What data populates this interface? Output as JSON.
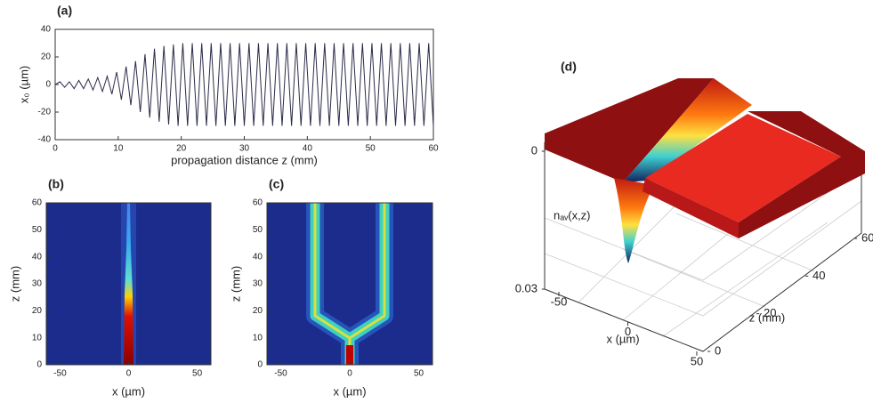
{
  "chart_data": [
    {
      "type": "line",
      "panel_label": "(a)",
      "x_label": "propagation distance z (mm)",
      "y_label": "x₀ (µm)",
      "xlim": [
        0,
        60
      ],
      "ylim": [
        -40,
        40
      ],
      "xticks": [
        0,
        10,
        20,
        30,
        40,
        50,
        60
      ],
      "yticks": [
        -40,
        -20,
        0,
        20,
        40
      ],
      "color": "#2b2b4a",
      "x": [
        0,
        0.75,
        1.5,
        2.25,
        3,
        3.75,
        4.5,
        5.25,
        6,
        6.75,
        7.5,
        8.25,
        9,
        9.75,
        10.5,
        11.25,
        12,
        12.75,
        13.5,
        14.25,
        15,
        15.75,
        16.5,
        17.25,
        18,
        18.75,
        19.5,
        20.25,
        21,
        21.75,
        22.5,
        23.25,
        24,
        24.75,
        25.5,
        26.25,
        27,
        27.75,
        28.5,
        29.25,
        30,
        30.75,
        31.5,
        32.25,
        33,
        33.75,
        34.5,
        35.25,
        36,
        36.75,
        37.5,
        38.25,
        39,
        39.75,
        40.5,
        41.25,
        42,
        42.75,
        43.5,
        44.25,
        45,
        45.75,
        46.5,
        47.25,
        48,
        48.75,
        49.5,
        50.25,
        51,
        51.75,
        52.5,
        53.25,
        54,
        54.75,
        55.5,
        56.25,
        57,
        57.75,
        58.5,
        59.25,
        60
      ],
      "values": [
        0,
        2,
        -2,
        2,
        -3,
        3,
        -3,
        4,
        -4,
        5,
        -5,
        6,
        -7,
        9,
        -11,
        13,
        -15,
        17,
        -20,
        22,
        -24,
        26,
        -27,
        28,
        -29,
        29,
        -30,
        30,
        -30,
        30,
        -30,
        30,
        -30,
        30,
        -30,
        30,
        -30,
        30,
        -30,
        30,
        -30,
        30,
        -30,
        30,
        -30,
        30,
        -30,
        30,
        -30,
        30,
        -30,
        30,
        -30,
        30,
        -30,
        30,
        -30,
        30,
        -30,
        30,
        -30,
        30,
        -30,
        30,
        -30,
        30,
        -30,
        30,
        -30,
        30,
        -30,
        30,
        -30,
        30,
        -30,
        30,
        -30,
        30,
        -30,
        30,
        -30
      ]
    },
    {
      "type": "image",
      "panel_label": "(b)",
      "x_label": "x (µm)",
      "y_label": "z (mm)",
      "xlim": [
        -60,
        60
      ],
      "ylim": [
        0,
        60
      ],
      "xticks": [
        -50,
        0,
        50
      ],
      "yticks": [
        0,
        10,
        20,
        30,
        40,
        50,
        60
      ]
    },
    {
      "type": "image",
      "panel_label": "(c)",
      "x_label": "x (µm)",
      "y_label": "z (mm)",
      "xlim": [
        -60,
        60
      ],
      "ylim": [
        0,
        60
      ],
      "xticks": [
        -50,
        0,
        50
      ],
      "yticks": [
        0,
        10,
        20,
        30,
        40,
        50,
        60
      ]
    },
    {
      "type": "surface",
      "panel_label": "(d)",
      "z_label": "nₐᵥ(x,z)",
      "x_label": "x (µm)",
      "y_label": "z (mm)",
      "zlim": [
        0,
        0.03
      ],
      "zticks": [
        0,
        0.03
      ],
      "xlim": [
        -50,
        50
      ],
      "xticks": [
        -50,
        0,
        50
      ],
      "ylim": [
        0,
        60
      ],
      "yticks": [
        0,
        20,
        40,
        60
      ]
    }
  ]
}
